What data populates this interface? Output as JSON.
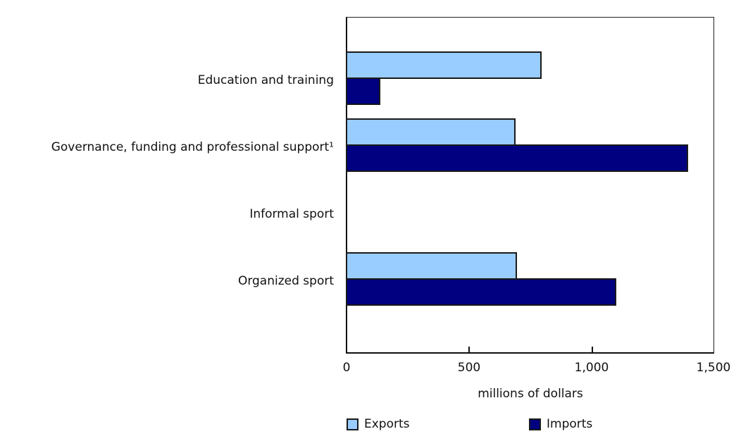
{
  "chart_data": {
    "type": "bar",
    "orientation": "horizontal",
    "title": "",
    "categories": [
      "Education and training",
      "Governance, funding and professional support¹",
      "Informal sport",
      "Organized sport"
    ],
    "series": [
      {
        "name": "Exports",
        "color": "#99ccff",
        "values": [
          796,
          687,
          0,
          695
        ]
      },
      {
        "name": "Imports",
        "color": "#000080",
        "values": [
          135,
          1394,
          0,
          1100
        ]
      }
    ],
    "xlabel": "millions of dollars",
    "ylabel": "",
    "xlim": [
      0,
      1500
    ],
    "xticks": [
      0,
      500,
      1000,
      1500
    ],
    "xtick_labels": [
      "0",
      "500",
      "1,000",
      "1,500"
    ],
    "grid": false,
    "legend_position": "bottom"
  },
  "labels": {
    "cat0": "Education and training",
    "cat1": "Governance, funding and professional support¹",
    "cat2": "Informal sport",
    "cat3": "Organized sport",
    "tick0": "0",
    "tick1": "500",
    "tick2": "1,000",
    "tick3": "1,500",
    "xlabel": "millions of dollars",
    "legend_exports": "Exports",
    "legend_imports": "Imports"
  }
}
